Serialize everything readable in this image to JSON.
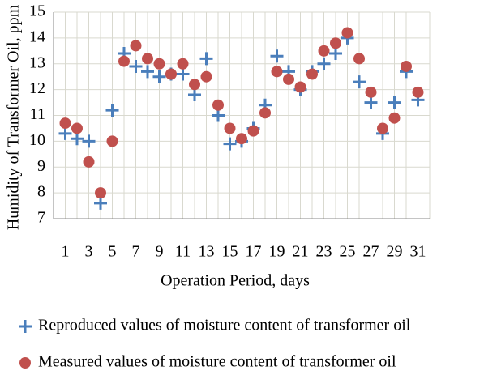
{
  "chart_data": {
    "type": "scatter",
    "x_label": "Operation Period, days",
    "y_label": "Humidity of Transformer Oil, ppm",
    "x": [
      1,
      2,
      3,
      4,
      5,
      6,
      7,
      8,
      9,
      10,
      11,
      12,
      13,
      14,
      15,
      16,
      17,
      18,
      19,
      20,
      21,
      22,
      23,
      24,
      25,
      26,
      27,
      28,
      29,
      30,
      31
    ],
    "series": [
      {
        "name": "Reproduced values of moisture content of transformer oil",
        "color": "#4a7ebb",
        "marker": "plus",
        "values": [
          10.3,
          10.1,
          10.0,
          7.6,
          11.2,
          13.4,
          12.9,
          12.7,
          12.5,
          12.6,
          12.6,
          11.8,
          13.2,
          11.0,
          9.9,
          10.0,
          10.5,
          11.4,
          13.3,
          12.7,
          12.0,
          12.7,
          13.0,
          13.4,
          14.0,
          12.3,
          11.5,
          10.3,
          11.5,
          12.7,
          11.6
        ]
      },
      {
        "name": "Measured values of moisture content of transformer oil",
        "color": "#c0504d",
        "marker": "circle",
        "values": [
          10.7,
          10.5,
          9.2,
          8.0,
          10.0,
          13.1,
          13.7,
          13.2,
          13.0,
          12.6,
          13.0,
          12.2,
          12.5,
          11.4,
          10.5,
          10.1,
          10.4,
          11.1,
          12.7,
          12.4,
          12.1,
          12.6,
          13.5,
          13.8,
          14.2,
          13.2,
          11.9,
          10.5,
          10.9,
          12.9,
          11.9
        ]
      }
    ],
    "xlim": [
      0,
      32
    ],
    "xticks": [
      1,
      3,
      5,
      7,
      9,
      11,
      13,
      15,
      17,
      19,
      21,
      23,
      25,
      27,
      29,
      31
    ],
    "xminorticks": [
      0,
      2,
      4,
      6,
      8,
      10,
      12,
      14,
      16,
      18,
      20,
      22,
      24,
      26,
      28,
      30,
      32
    ],
    "ylim": [
      7,
      15
    ],
    "yticks": [
      7,
      8,
      9,
      10,
      11,
      12,
      13,
      14,
      15
    ],
    "grid": true,
    "legend": "bottom"
  }
}
